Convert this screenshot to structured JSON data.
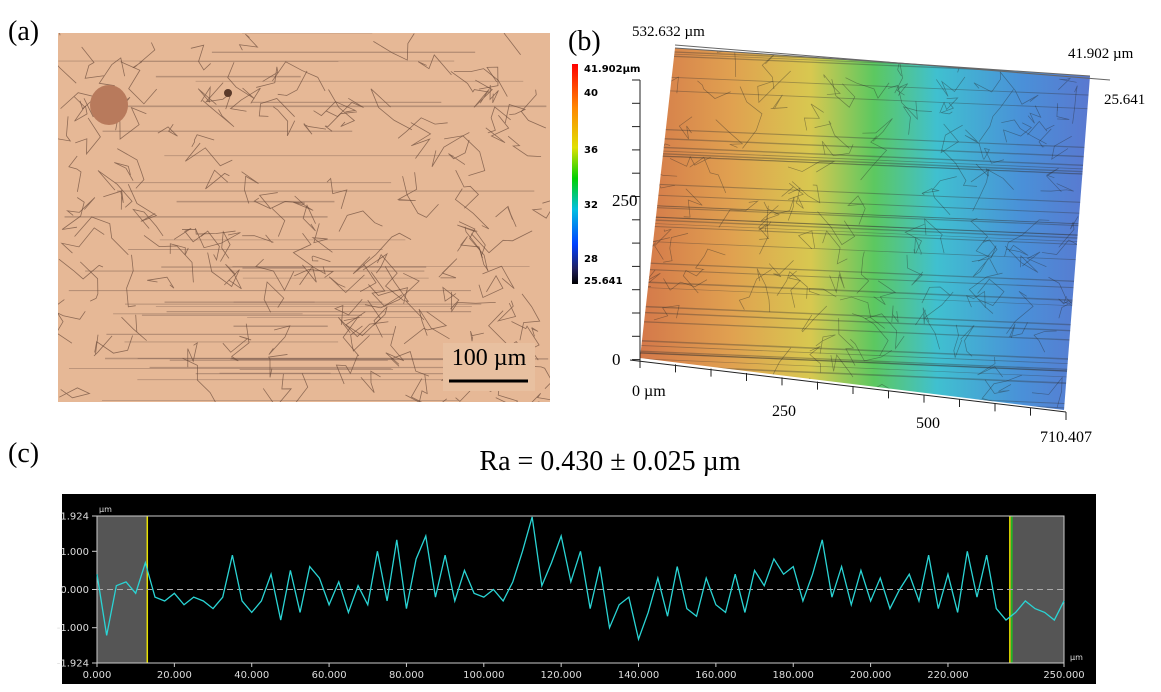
{
  "panel_a": {
    "label": "(a)",
    "scale_bar": "100 µm"
  },
  "panel_b": {
    "label": "(b)",
    "top_left": "532.632 µm",
    "top_right": "41.902 µm",
    "right_lower": "25.641",
    "colorbar": {
      "max_label": "41.902µm",
      "ticks": [
        "40",
        "36",
        "32",
        "28"
      ],
      "min_label": "25.641"
    },
    "y_axis_labels": [
      "250",
      "0"
    ],
    "x_axis_labels": [
      "0 µm",
      "250",
      "500",
      "710.407"
    ]
  },
  "panel_c": {
    "label": "(c)"
  },
  "chart_data": {
    "type": "line",
    "title": "Ra = 0.430 ± 0.025 µm",
    "y_unit": "µm",
    "x_unit": "µm",
    "color": "#2ad4d4",
    "x": [
      0,
      2.5,
      5,
      7.5,
      10,
      12.5,
      15,
      17.5,
      20,
      22.5,
      25,
      27.5,
      30,
      32.5,
      35,
      37.5,
      40,
      42.5,
      45,
      47.5,
      50,
      52.5,
      55,
      57.5,
      60,
      62.5,
      65,
      67.5,
      70,
      72.5,
      75,
      77.5,
      80,
      82.5,
      85,
      87.5,
      90,
      92.5,
      95,
      97.5,
      100,
      102.5,
      105,
      107.5,
      110,
      112.5,
      115,
      117.5,
      120,
      122.5,
      125,
      127.5,
      130,
      132.5,
      135,
      137.5,
      140,
      142.5,
      145,
      147.5,
      150,
      152.5,
      155,
      157.5,
      160,
      162.5,
      165,
      167.5,
      170,
      172.5,
      175,
      177.5,
      180,
      182.5,
      185,
      187.5,
      190,
      192.5,
      195,
      197.5,
      200,
      202.5,
      205,
      207.5,
      210,
      212.5,
      215,
      217.5,
      220,
      222.5,
      225,
      227.5,
      230,
      232.5,
      235,
      237.5,
      240,
      242.5,
      245,
      247.5,
      250
    ],
    "values": [
      0.4,
      -1.2,
      0.1,
      0.2,
      -0.1,
      0.7,
      -0.2,
      -0.3,
      -0.1,
      -0.4,
      -0.2,
      -0.3,
      -0.5,
      -0.2,
      0.9,
      -0.3,
      -0.6,
      -0.3,
      0.4,
      -0.8,
      0.5,
      -0.6,
      0.6,
      0.3,
      -0.4,
      0.2,
      -0.6,
      0.1,
      -0.4,
      1.0,
      -0.3,
      1.3,
      -0.5,
      0.8,
      1.4,
      -0.2,
      0.9,
      -0.3,
      0.5,
      -0.1,
      -0.2,
      0.0,
      -0.3,
      0.2,
      1.0,
      1.9,
      0.1,
      0.7,
      1.4,
      0.2,
      1.0,
      -0.5,
      0.6,
      -1.0,
      -0.4,
      -0.2,
      -1.3,
      -0.6,
      0.3,
      -0.7,
      0.6,
      -0.5,
      -0.7,
      0.3,
      -0.4,
      -0.6,
      0.4,
      -0.6,
      0.5,
      0.1,
      0.8,
      0.4,
      0.6,
      -0.3,
      0.4,
      1.3,
      -0.2,
      0.6,
      -0.4,
      0.5,
      -0.3,
      0.3,
      -0.5,
      0.0,
      0.4,
      -0.3,
      0.9,
      -0.5,
      0.4,
      -0.6,
      1.0,
      -0.2,
      0.9,
      -0.5,
      -0.8,
      -0.6,
      -0.3,
      -0.5,
      -0.6,
      -0.8,
      -0.3
    ],
    "cursors": [
      13,
      236
    ],
    "baseline": 0,
    "xlim": [
      0,
      250
    ],
    "ylim": [
      -1.924,
      1.924
    ],
    "xticks": [
      {
        "value": 0,
        "label": "0.000"
      },
      {
        "value": 20,
        "label": "20.000"
      },
      {
        "value": 40,
        "label": "40.000"
      },
      {
        "value": 60,
        "label": "60.000"
      },
      {
        "value": 80,
        "label": "80.000"
      },
      {
        "value": 100,
        "label": "100.000"
      },
      {
        "value": 120,
        "label": "120.000"
      },
      {
        "value": 140,
        "label": "140.000"
      },
      {
        "value": 160,
        "label": "160.000"
      },
      {
        "value": 180,
        "label": "180.000"
      },
      {
        "value": 200,
        "label": "200.000"
      },
      {
        "value": 220,
        "label": "220.000"
      },
      {
        "value": 250,
        "label": "250.000"
      }
    ],
    "yticks": [
      1.924,
      {
        "value": 1,
        "label": "1.000"
      },
      {
        "value": 0,
        "label": "0.000"
      },
      {
        "value": -1,
        "label": "-1.000"
      },
      -1.924
    ]
  }
}
